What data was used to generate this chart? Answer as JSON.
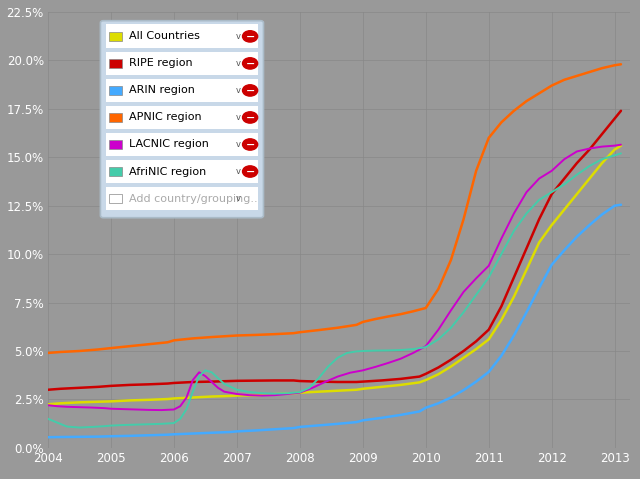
{
  "bg_color": "#999999",
  "plot_bg_color": "#999999",
  "grid_color": "#888888",
  "ylim": [
    0.0,
    0.225
  ],
  "yticks": [
    0.0,
    0.025,
    0.05,
    0.075,
    0.1,
    0.125,
    0.15,
    0.175,
    0.2,
    0.225
  ],
  "ytick_labels": [
    "0.0%",
    "2.5%",
    "5.0%",
    "7.5%",
    "10.0%",
    "12.5%",
    "15.0%",
    "17.5%",
    "20.0%",
    "22.5%"
  ],
  "xlim_start": 2004.0,
  "xlim_end": 2013.25,
  "xtick_vals": [
    2004,
    2005,
    2006,
    2007,
    2008,
    2009,
    2010,
    2011,
    2012,
    2013
  ],
  "series": [
    {
      "name": "All Countries",
      "color": "#dddd00",
      "lw": 1.8,
      "points": [
        [
          2004.0,
          0.0225
        ],
        [
          2004.2,
          0.023
        ],
        [
          2004.5,
          0.0235
        ],
        [
          2004.8,
          0.0238
        ],
        [
          2005.0,
          0.024
        ],
        [
          2005.3,
          0.0245
        ],
        [
          2005.6,
          0.0248
        ],
        [
          2005.9,
          0.0252
        ],
        [
          2006.0,
          0.0255
        ],
        [
          2006.3,
          0.026
        ],
        [
          2006.6,
          0.0265
        ],
        [
          2006.9,
          0.0268
        ],
        [
          2007.0,
          0.027
        ],
        [
          2007.3,
          0.0272
        ],
        [
          2007.6,
          0.0278
        ],
        [
          2007.9,
          0.0282
        ],
        [
          2008.0,
          0.0285
        ],
        [
          2008.3,
          0.029
        ],
        [
          2008.6,
          0.0295
        ],
        [
          2008.9,
          0.03
        ],
        [
          2009.0,
          0.0305
        ],
        [
          2009.3,
          0.0315
        ],
        [
          2009.6,
          0.0325
        ],
        [
          2009.9,
          0.0338
        ],
        [
          2010.0,
          0.035
        ],
        [
          2010.2,
          0.038
        ],
        [
          2010.4,
          0.042
        ],
        [
          2010.6,
          0.0465
        ],
        [
          2010.8,
          0.051
        ],
        [
          2011.0,
          0.056
        ],
        [
          2011.2,
          0.066
        ],
        [
          2011.4,
          0.078
        ],
        [
          2011.6,
          0.092
        ],
        [
          2011.8,
          0.106
        ],
        [
          2012.0,
          0.115
        ],
        [
          2012.2,
          0.123
        ],
        [
          2012.4,
          0.131
        ],
        [
          2012.6,
          0.139
        ],
        [
          2012.8,
          0.147
        ],
        [
          2013.0,
          0.154
        ],
        [
          2013.1,
          0.156
        ]
      ]
    },
    {
      "name": "RIPE region",
      "color": "#cc0000",
      "lw": 1.8,
      "points": [
        [
          2004.0,
          0.03
        ],
        [
          2004.2,
          0.0305
        ],
        [
          2004.5,
          0.031
        ],
        [
          2004.8,
          0.0315
        ],
        [
          2005.0,
          0.032
        ],
        [
          2005.3,
          0.0325
        ],
        [
          2005.6,
          0.0328
        ],
        [
          2005.9,
          0.0332
        ],
        [
          2006.0,
          0.0335
        ],
        [
          2006.3,
          0.034
        ],
        [
          2006.6,
          0.0342
        ],
        [
          2006.9,
          0.0345
        ],
        [
          2007.0,
          0.0346
        ],
        [
          2007.3,
          0.0347
        ],
        [
          2007.6,
          0.0348
        ],
        [
          2007.9,
          0.0348
        ],
        [
          2008.0,
          0.0345
        ],
        [
          2008.3,
          0.0342
        ],
        [
          2008.6,
          0.034
        ],
        [
          2008.9,
          0.034
        ],
        [
          2009.0,
          0.0342
        ],
        [
          2009.3,
          0.0348
        ],
        [
          2009.6,
          0.0356
        ],
        [
          2009.9,
          0.0368
        ],
        [
          2010.0,
          0.0382
        ],
        [
          2010.2,
          0.0415
        ],
        [
          2010.4,
          0.0455
        ],
        [
          2010.6,
          0.05
        ],
        [
          2010.8,
          0.055
        ],
        [
          2011.0,
          0.061
        ],
        [
          2011.2,
          0.073
        ],
        [
          2011.4,
          0.088
        ],
        [
          2011.6,
          0.103
        ],
        [
          2011.8,
          0.118
        ],
        [
          2012.0,
          0.131
        ],
        [
          2012.2,
          0.139
        ],
        [
          2012.4,
          0.147
        ],
        [
          2012.6,
          0.154
        ],
        [
          2012.8,
          0.162
        ],
        [
          2013.0,
          0.17
        ],
        [
          2013.1,
          0.174
        ]
      ]
    },
    {
      "name": "ARIN region",
      "color": "#44aaff",
      "lw": 1.8,
      "points": [
        [
          2004.0,
          0.0055
        ],
        [
          2004.2,
          0.0056
        ],
        [
          2004.5,
          0.0057
        ],
        [
          2004.8,
          0.0058
        ],
        [
          2005.0,
          0.006
        ],
        [
          2005.3,
          0.0062
        ],
        [
          2005.6,
          0.0065
        ],
        [
          2005.9,
          0.0068
        ],
        [
          2006.0,
          0.007
        ],
        [
          2006.3,
          0.0074
        ],
        [
          2006.6,
          0.0078
        ],
        [
          2006.9,
          0.0082
        ],
        [
          2007.0,
          0.0085
        ],
        [
          2007.3,
          0.009
        ],
        [
          2007.6,
          0.0096
        ],
        [
          2007.9,
          0.0102
        ],
        [
          2008.0,
          0.0108
        ],
        [
          2008.3,
          0.0116
        ],
        [
          2008.6,
          0.0124
        ],
        [
          2008.9,
          0.0133
        ],
        [
          2009.0,
          0.0142
        ],
        [
          2009.3,
          0.0155
        ],
        [
          2009.6,
          0.017
        ],
        [
          2009.9,
          0.0188
        ],
        [
          2010.0,
          0.0207
        ],
        [
          2010.2,
          0.023
        ],
        [
          2010.4,
          0.026
        ],
        [
          2010.6,
          0.0298
        ],
        [
          2010.8,
          0.0342
        ],
        [
          2011.0,
          0.0392
        ],
        [
          2011.2,
          0.0475
        ],
        [
          2011.4,
          0.058
        ],
        [
          2011.6,
          0.07
        ],
        [
          2011.8,
          0.0825
        ],
        [
          2012.0,
          0.0945
        ],
        [
          2012.2,
          0.102
        ],
        [
          2012.4,
          0.109
        ],
        [
          2012.6,
          0.115
        ],
        [
          2012.8,
          0.1205
        ],
        [
          2013.0,
          0.125
        ],
        [
          2013.1,
          0.1255
        ]
      ]
    },
    {
      "name": "APNIC region",
      "color": "#ff6600",
      "lw": 1.8,
      "points": [
        [
          2004.0,
          0.049
        ],
        [
          2004.2,
          0.0495
        ],
        [
          2004.5,
          0.05
        ],
        [
          2004.8,
          0.0508
        ],
        [
          2005.0,
          0.0515
        ],
        [
          2005.3,
          0.0525
        ],
        [
          2005.6,
          0.0535
        ],
        [
          2005.9,
          0.0545
        ],
        [
          2006.0,
          0.0555
        ],
        [
          2006.3,
          0.0565
        ],
        [
          2006.6,
          0.0572
        ],
        [
          2006.9,
          0.0578
        ],
        [
          2007.0,
          0.058
        ],
        [
          2007.3,
          0.0583
        ],
        [
          2007.6,
          0.0587
        ],
        [
          2007.9,
          0.0592
        ],
        [
          2008.0,
          0.0597
        ],
        [
          2008.3,
          0.0608
        ],
        [
          2008.6,
          0.062
        ],
        [
          2008.9,
          0.0635
        ],
        [
          2009.0,
          0.065
        ],
        [
          2009.2,
          0.0665
        ],
        [
          2009.4,
          0.0678
        ],
        [
          2009.6,
          0.069
        ],
        [
          2009.8,
          0.0705
        ],
        [
          2010.0,
          0.0722
        ],
        [
          2010.2,
          0.082
        ],
        [
          2010.4,
          0.097
        ],
        [
          2010.6,
          0.118
        ],
        [
          2010.8,
          0.143
        ],
        [
          2011.0,
          0.16
        ],
        [
          2011.2,
          0.168
        ],
        [
          2011.4,
          0.174
        ],
        [
          2011.6,
          0.179
        ],
        [
          2011.8,
          0.183
        ],
        [
          2012.0,
          0.187
        ],
        [
          2012.2,
          0.19
        ],
        [
          2012.4,
          0.192
        ],
        [
          2012.6,
          0.194
        ],
        [
          2012.8,
          0.196
        ],
        [
          2013.0,
          0.1975
        ],
        [
          2013.1,
          0.198
        ]
      ]
    },
    {
      "name": "LACNIC region",
      "color": "#cc00cc",
      "lw": 1.4,
      "points": [
        [
          2004.0,
          0.022
        ],
        [
          2004.15,
          0.0215
        ],
        [
          2004.3,
          0.0212
        ],
        [
          2004.5,
          0.021
        ],
        [
          2004.7,
          0.0208
        ],
        [
          2004.9,
          0.0205
        ],
        [
          2005.0,
          0.0202
        ],
        [
          2005.2,
          0.02
        ],
        [
          2005.4,
          0.0198
        ],
        [
          2005.6,
          0.0196
        ],
        [
          2005.8,
          0.0195
        ],
        [
          2006.0,
          0.0198
        ],
        [
          2006.1,
          0.0215
        ],
        [
          2006.2,
          0.026
        ],
        [
          2006.3,
          0.035
        ],
        [
          2006.4,
          0.039
        ],
        [
          2006.5,
          0.037
        ],
        [
          2006.6,
          0.034
        ],
        [
          2006.7,
          0.031
        ],
        [
          2006.8,
          0.029
        ],
        [
          2007.0,
          0.0278
        ],
        [
          2007.2,
          0.0272
        ],
        [
          2007.4,
          0.027
        ],
        [
          2007.6,
          0.0272
        ],
        [
          2007.8,
          0.0278
        ],
        [
          2008.0,
          0.0285
        ],
        [
          2008.2,
          0.031
        ],
        [
          2008.4,
          0.034
        ],
        [
          2008.6,
          0.0368
        ],
        [
          2008.8,
          0.0388
        ],
        [
          2009.0,
          0.04
        ],
        [
          2009.2,
          0.0418
        ],
        [
          2009.4,
          0.0438
        ],
        [
          2009.6,
          0.046
        ],
        [
          2009.8,
          0.049
        ],
        [
          2010.0,
          0.0525
        ],
        [
          2010.2,
          0.061
        ],
        [
          2010.4,
          0.071
        ],
        [
          2010.6,
          0.0805
        ],
        [
          2010.8,
          0.0875
        ],
        [
          2011.0,
          0.094
        ],
        [
          2011.2,
          0.108
        ],
        [
          2011.4,
          0.121
        ],
        [
          2011.6,
          0.132
        ],
        [
          2011.8,
          0.139
        ],
        [
          2012.0,
          0.143
        ],
        [
          2012.2,
          0.149
        ],
        [
          2012.4,
          0.153
        ],
        [
          2012.6,
          0.1545
        ],
        [
          2012.8,
          0.1555
        ],
        [
          2013.0,
          0.156
        ],
        [
          2013.1,
          0.1565
        ]
      ]
    },
    {
      "name": "AfriNIC region",
      "color": "#44ccaa",
      "lw": 1.4,
      "points": [
        [
          2004.0,
          0.015
        ],
        [
          2004.15,
          0.013
        ],
        [
          2004.3,
          0.011
        ],
        [
          2004.5,
          0.0105
        ],
        [
          2004.7,
          0.0108
        ],
        [
          2004.9,
          0.0112
        ],
        [
          2005.0,
          0.0115
        ],
        [
          2005.2,
          0.0118
        ],
        [
          2005.4,
          0.012
        ],
        [
          2005.6,
          0.0122
        ],
        [
          2005.8,
          0.0124
        ],
        [
          2006.0,
          0.0128
        ],
        [
          2006.1,
          0.015
        ],
        [
          2006.2,
          0.02
        ],
        [
          2006.3,
          0.029
        ],
        [
          2006.4,
          0.037
        ],
        [
          2006.5,
          0.04
        ],
        [
          2006.6,
          0.039
        ],
        [
          2006.7,
          0.036
        ],
        [
          2006.8,
          0.033
        ],
        [
          2007.0,
          0.03
        ],
        [
          2007.2,
          0.0288
        ],
        [
          2007.4,
          0.0282
        ],
        [
          2007.6,
          0.028
        ],
        [
          2007.8,
          0.0282
        ],
        [
          2008.0,
          0.0288
        ],
        [
          2008.15,
          0.031
        ],
        [
          2008.3,
          0.036
        ],
        [
          2008.45,
          0.042
        ],
        [
          2008.6,
          0.0465
        ],
        [
          2008.75,
          0.049
        ],
        [
          2008.9,
          0.0498
        ],
        [
          2009.0,
          0.05
        ],
        [
          2009.2,
          0.0502
        ],
        [
          2009.4,
          0.0503
        ],
        [
          2009.6,
          0.0505
        ],
        [
          2009.8,
          0.051
        ],
        [
          2010.0,
          0.052
        ],
        [
          2010.2,
          0.056
        ],
        [
          2010.4,
          0.062
        ],
        [
          2010.6,
          0.07
        ],
        [
          2010.8,
          0.079
        ],
        [
          2011.0,
          0.088
        ],
        [
          2011.2,
          0.1
        ],
        [
          2011.4,
          0.112
        ],
        [
          2011.6,
          0.121
        ],
        [
          2011.8,
          0.128
        ],
        [
          2012.0,
          0.132
        ],
        [
          2012.2,
          0.136
        ],
        [
          2012.4,
          0.141
        ],
        [
          2012.6,
          0.1455
        ],
        [
          2012.8,
          0.149
        ],
        [
          2013.0,
          0.151
        ],
        [
          2013.1,
          0.152
        ]
      ]
    }
  ],
  "legend_items": [
    {
      "label": "All Countries",
      "color": "#dddd00"
    },
    {
      "label": "RIPE region",
      "color": "#cc0000"
    },
    {
      "label": "ARIN region",
      "color": "#44aaff"
    },
    {
      "label": "APNIC region",
      "color": "#ff6600"
    },
    {
      "label": "LACNIC region",
      "color": "#cc00cc"
    },
    {
      "label": "AfriNIC region",
      "color": "#44ccaa"
    }
  ]
}
